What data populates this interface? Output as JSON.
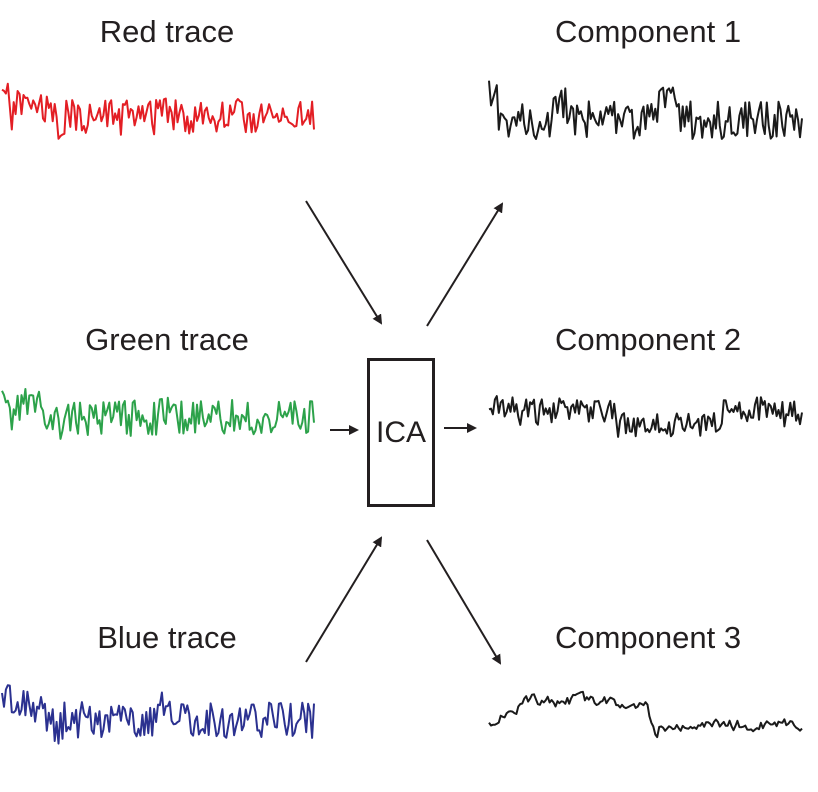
{
  "inputs": {
    "red": {
      "label": "Red trace",
      "color": "#e31e24"
    },
    "green": {
      "label": "Green trace",
      "color": "#2ca24a"
    },
    "blue": {
      "label": "Blue trace",
      "color": "#2b3190"
    }
  },
  "center": {
    "label": "ICA"
  },
  "outputs": {
    "c1": {
      "label": "Component 1",
      "color": "#1a1a1a"
    },
    "c2": {
      "label": "Component 2",
      "color": "#1a1a1a"
    },
    "c3": {
      "label": "Component 3",
      "color": "#1a1a1a"
    }
  },
  "arrow_color": "#231f20"
}
